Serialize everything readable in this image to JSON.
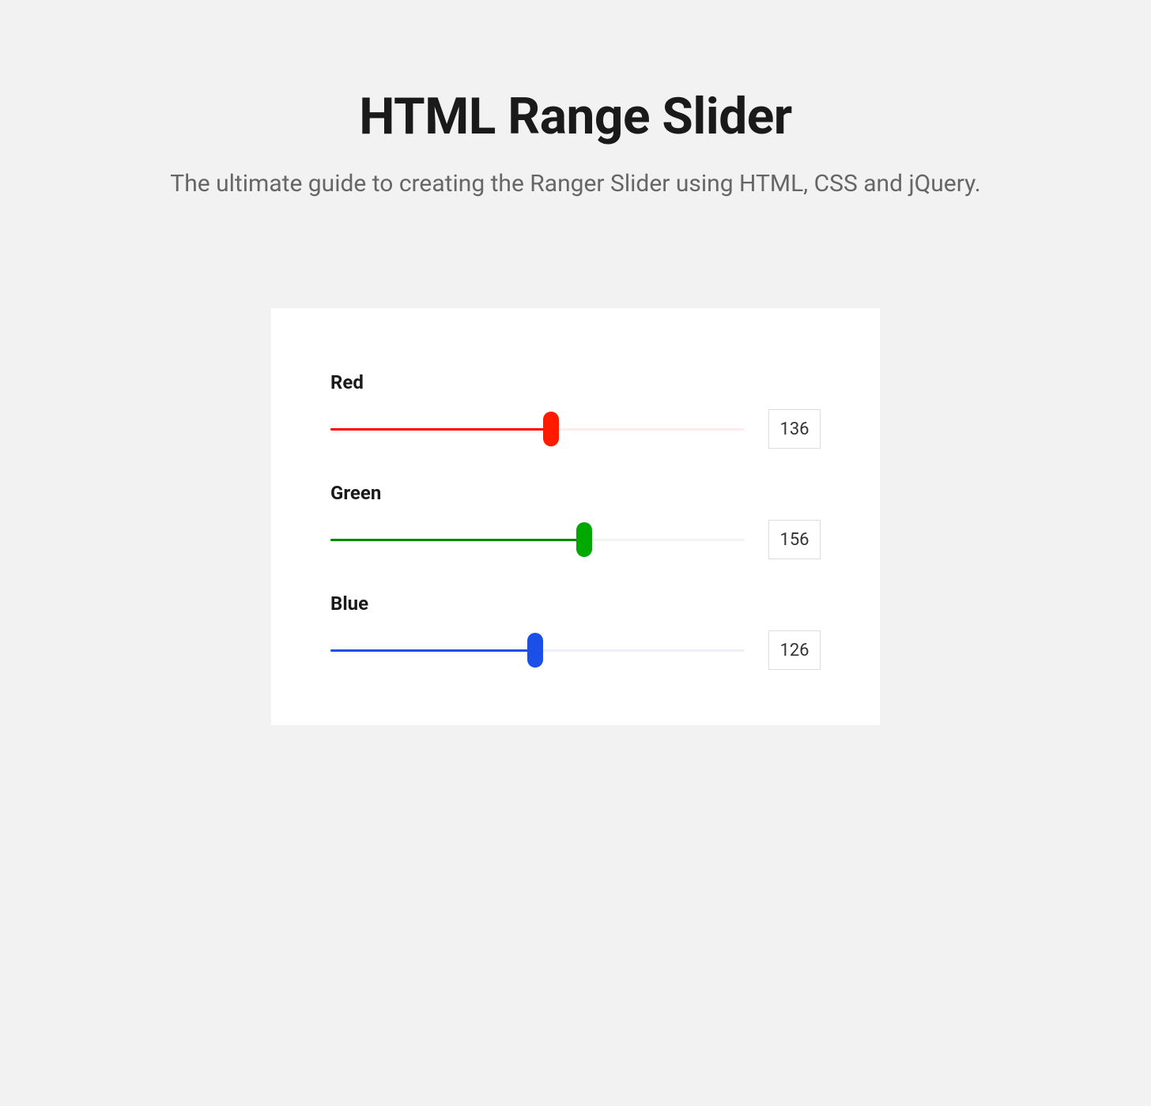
{
  "header": {
    "title": "HTML Range Slider",
    "subtitle": "The ultimate guide to creating the Ranger Slider using HTML, CSS and jQuery."
  },
  "panel": {
    "background_color": "#ffffff"
  },
  "page": {
    "background_color": "#f2f2f2"
  },
  "sliders": [
    {
      "id": "red",
      "label": "Red",
      "value": 136,
      "min": 0,
      "max": 255,
      "fill_color": "#ff0000",
      "thumb_color": "#ff1a00",
      "track_bg_color": "#ffecec"
    },
    {
      "id": "green",
      "label": "Green",
      "value": 156,
      "min": 0,
      "max": 255,
      "fill_color": "#008a00",
      "thumb_color": "#00a800",
      "track_bg_color": "#eef6ee"
    },
    {
      "id": "blue",
      "label": "Blue",
      "value": 126,
      "min": 0,
      "max": 255,
      "fill_color": "#1a4fe8",
      "thumb_color": "#1a4fe8",
      "track_bg_color": "#eceff8"
    }
  ]
}
